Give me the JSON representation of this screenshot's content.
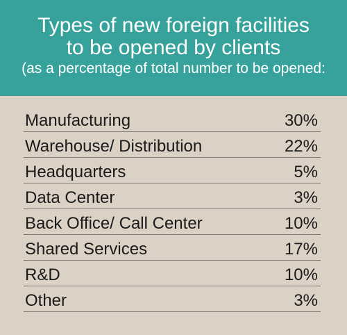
{
  "colors": {
    "header_bg": "#36a29b",
    "card_bg": "#dcd1c5",
    "header_text": "#ffffff",
    "row_text": "#1a1a1a",
    "rule": "#7d7a76"
  },
  "chart_data": {
    "type": "table",
    "title_line1": "Types of new foreign facilities",
    "title_line2": "to be opened by clients",
    "subtitle": "(as a percentage of total number to be opened:",
    "rows": [
      {
        "label": "Manufacturing",
        "display": "30%",
        "value": 30
      },
      {
        "label": "Warehouse/ Distribution",
        "display": "22%",
        "value": 22
      },
      {
        "label": "Headquarters",
        "display": "5%",
        "value": 5
      },
      {
        "label": "Data Center",
        "display": "3%",
        "value": 3
      },
      {
        "label": "Back Office/ Call Center",
        "display": "10%",
        "value": 10
      },
      {
        "label": "Shared Services",
        "display": "17%",
        "value": 17
      },
      {
        "label": "R&D",
        "display": "10%",
        "value": 10
      },
      {
        "label": "Other",
        "display": "3%",
        "value": 3
      }
    ]
  }
}
